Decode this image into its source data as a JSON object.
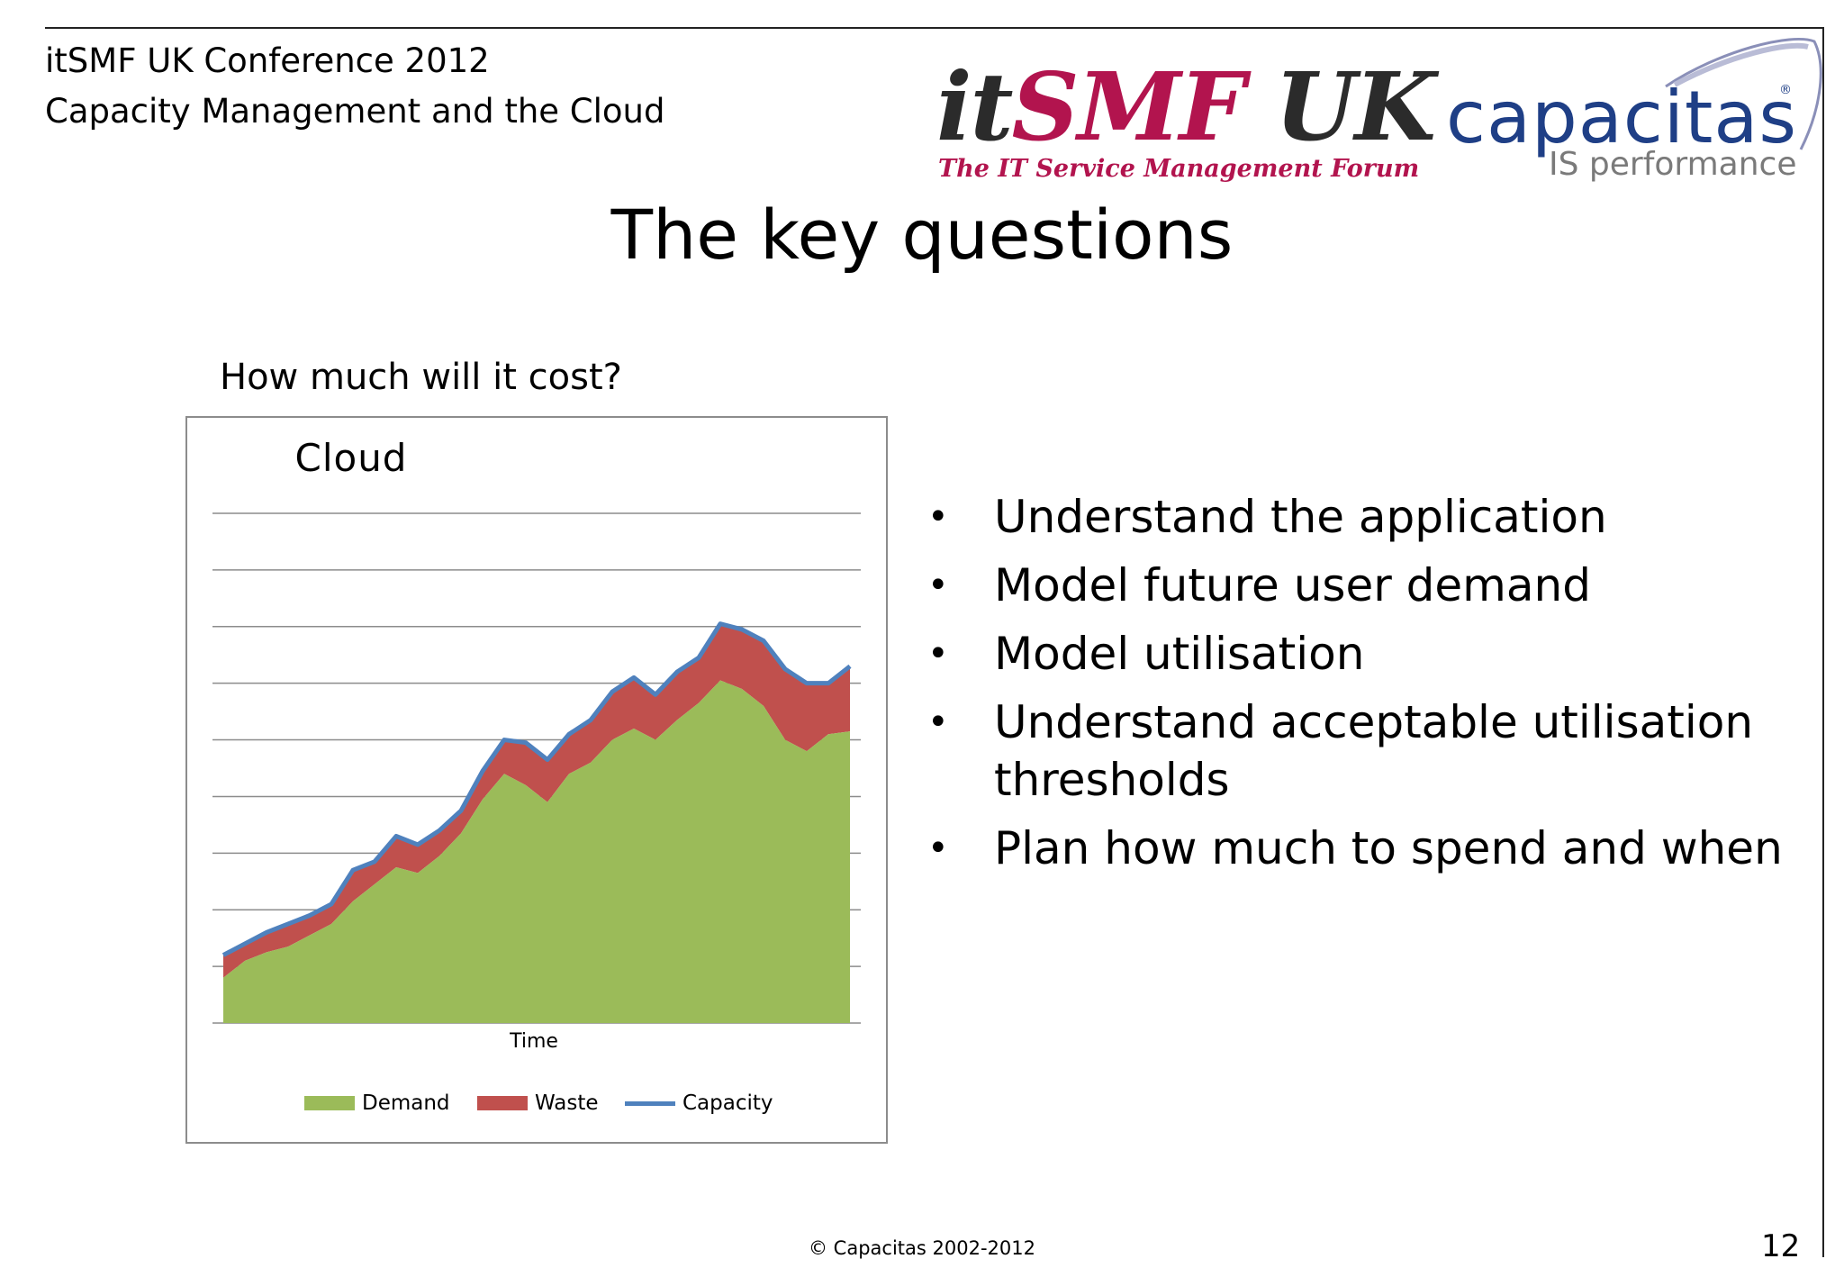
{
  "header": {
    "conference": "itSMF UK Conference 2012",
    "session": "Capacity Management and the Cloud"
  },
  "logos": {
    "itsmf": {
      "it": "it",
      "smf": "SMF",
      "uk": " UK",
      "tagline": "The IT Service Management Forum"
    },
    "capacitas": {
      "wordmark": "capacitas",
      "registered": "®",
      "tagline": "IS performance"
    }
  },
  "title": "The key questions",
  "question": "How much will it cost?",
  "bullets": [
    "Understand the application",
    "Model future user demand",
    "Model utilisation",
    "Understand acceptable utilisation thresholds",
    "Plan how much to spend and when"
  ],
  "colors": {
    "demand": "#9bbb59",
    "waste": "#c0504d",
    "capacity": "#4f81bd",
    "gridline": "#8c8c8c"
  },
  "chart_data": {
    "type": "area",
    "title": "Cloud",
    "xlabel": "Time",
    "ylabel": "",
    "ylim": [
      0,
      9
    ],
    "grid": true,
    "legend_position": "bottom",
    "series": [
      {
        "name": "Demand",
        "kind": "area",
        "values": [
          0.8,
          1.1,
          1.25,
          1.35,
          1.55,
          1.75,
          2.15,
          2.45,
          2.75,
          2.65,
          2.95,
          3.35,
          3.95,
          4.4,
          4.2,
          3.9,
          4.4,
          4.6,
          5.0,
          5.2,
          5.0,
          5.35,
          5.65,
          6.05,
          5.9,
          5.6,
          5.0,
          4.8,
          5.1,
          5.15
        ]
      },
      {
        "name": "Waste",
        "kind": "stacked-area",
        "values": [
          0.4,
          0.3,
          0.35,
          0.4,
          0.35,
          0.35,
          0.55,
          0.4,
          0.55,
          0.5,
          0.45,
          0.4,
          0.5,
          0.6,
          0.75,
          0.75,
          0.7,
          0.75,
          0.85,
          0.9,
          0.8,
          0.85,
          0.8,
          1.0,
          1.05,
          1.15,
          1.25,
          1.2,
          0.9,
          1.15
        ]
      },
      {
        "name": "Capacity",
        "kind": "line",
        "values": [
          1.2,
          1.4,
          1.6,
          1.75,
          1.9,
          2.1,
          2.7,
          2.85,
          3.3,
          3.15,
          3.4,
          3.75,
          4.45,
          5.0,
          4.95,
          4.65,
          5.1,
          5.35,
          5.85,
          6.1,
          5.8,
          6.2,
          6.45,
          7.05,
          6.95,
          6.75,
          6.25,
          6.0,
          6.0,
          6.3
        ]
      }
    ]
  },
  "footer": {
    "copyright": "© Capacitas 2002-2012",
    "page_number": "12"
  }
}
